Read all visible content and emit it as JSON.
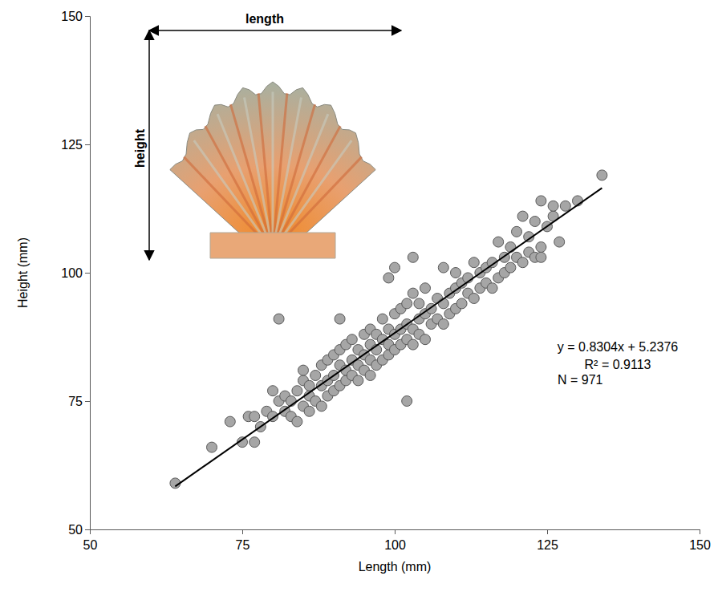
{
  "chart_data": {
    "type": "scatter",
    "x_label": "Length (mm)",
    "y_label": "Height (mm)",
    "xlim": [
      50,
      150
    ],
    "xticks": [
      50,
      75,
      100,
      125,
      150
    ],
    "ylim": [
      50,
      150
    ],
    "yticks": [
      50,
      75,
      100,
      125,
      150
    ],
    "grid": false,
    "annotations": [
      "y = 0.8304x + 5.2376",
      "R² = 0.9113",
      "N = 971"
    ],
    "inset_labels": [
      "length",
      "height"
    ],
    "series": [
      {
        "type": "scatter",
        "marker": "circle",
        "color": "#a6a6a6",
        "x": [
          64,
          70,
          73,
          75,
          76,
          77,
          77,
          78,
          79,
          80,
          80,
          81,
          81,
          82,
          82,
          83,
          83,
          84,
          84,
          85,
          85,
          85,
          86,
          86,
          86,
          87,
          87,
          88,
          88,
          88,
          89,
          89,
          89,
          90,
          90,
          90,
          91,
          91,
          91,
          91,
          92,
          92,
          92,
          93,
          93,
          93,
          94,
          94,
          94,
          95,
          95,
          95,
          96,
          96,
          96,
          96,
          97,
          97,
          97,
          98,
          98,
          98,
          99,
          99,
          99,
          99,
          100,
          100,
          100,
          100,
          101,
          101,
          101,
          102,
          102,
          102,
          102,
          103,
          103,
          103,
          103,
          104,
          104,
          104,
          105,
          105,
          105,
          106,
          106,
          107,
          107,
          108,
          108,
          108,
          109,
          109,
          110,
          110,
          110,
          111,
          111,
          112,
          112,
          113,
          113,
          114,
          114,
          115,
          115,
          116,
          116,
          117,
          117,
          118,
          118,
          119,
          119,
          120,
          120,
          121,
          121,
          122,
          122,
          123,
          123,
          124,
          124,
          124,
          125,
          126,
          126,
          127,
          128,
          130,
          134
        ],
        "values": [
          59,
          66,
          71,
          67,
          72,
          67,
          72,
          70,
          73,
          77,
          72,
          75,
          91,
          73,
          76,
          72,
          75,
          71,
          77,
          74,
          79,
          81,
          73,
          76,
          78,
          75,
          80,
          74,
          78,
          82,
          76,
          79,
          83,
          77,
          80,
          84,
          78,
          82,
          85,
          91,
          79,
          81,
          86,
          80,
          83,
          87,
          79,
          82,
          85,
          81,
          84,
          88,
          80,
          83,
          86,
          89,
          82,
          85,
          88,
          83,
          87,
          91,
          84,
          86,
          89,
          99,
          85,
          88,
          92,
          101,
          86,
          89,
          93,
          87,
          90,
          94,
          75,
          86,
          89,
          96,
          103,
          88,
          91,
          94,
          87,
          92,
          97,
          90,
          93,
          91,
          95,
          90,
          94,
          101,
          92,
          96,
          93,
          97,
          100,
          94,
          98,
          96,
          99,
          95,
          102,
          97,
          100,
          98,
          101,
          97,
          102,
          99,
          106,
          100,
          103,
          101,
          105,
          103,
          108,
          102,
          111,
          104,
          107,
          103,
          110,
          103,
          105,
          114,
          109,
          111,
          113,
          106,
          113,
          114,
          119
        ]
      },
      {
        "type": "line",
        "line_style": "solid",
        "color": "#000000",
        "x": [
          64,
          134
        ],
        "values": [
          58.38,
          116.51
        ]
      }
    ]
  }
}
